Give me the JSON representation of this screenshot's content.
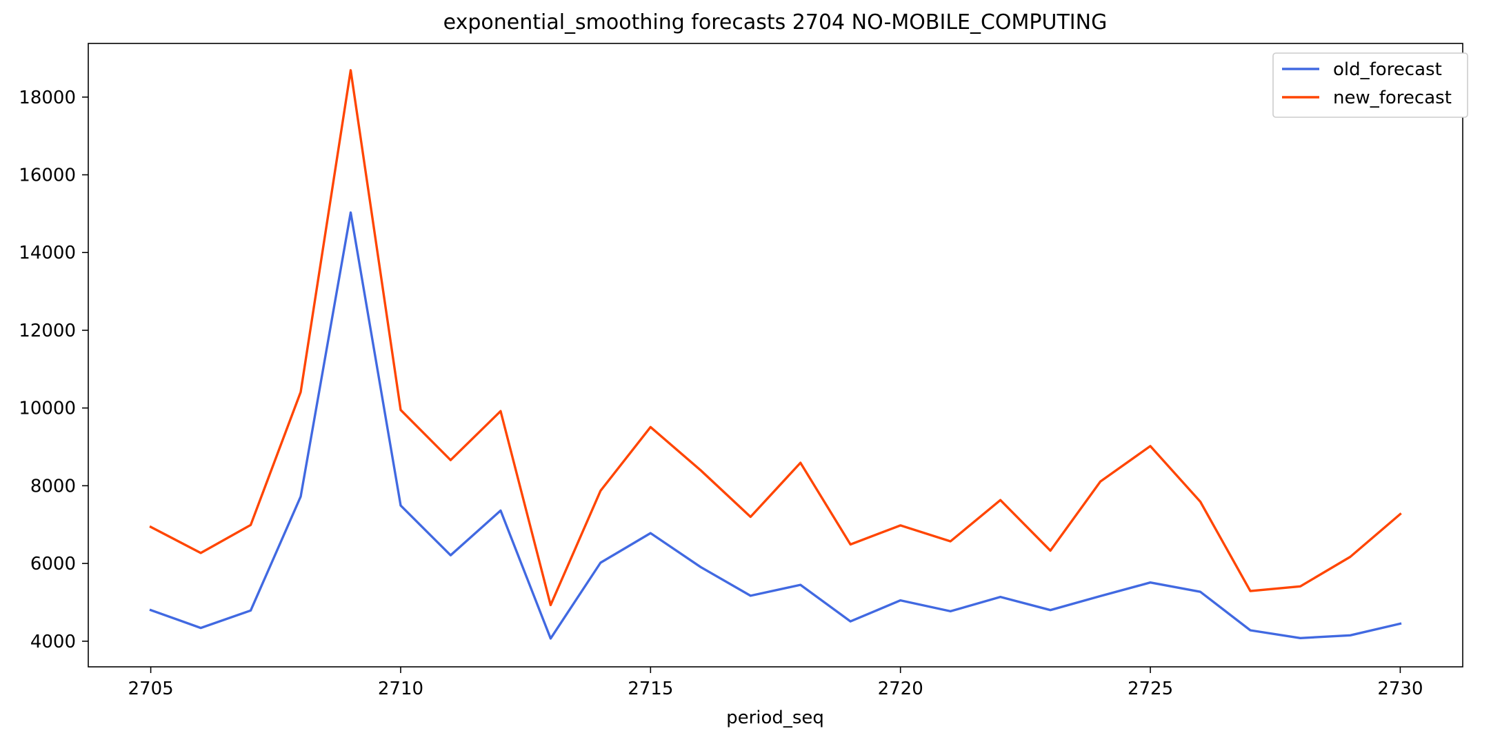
{
  "chart_data": {
    "type": "line",
    "title": "exponential_smoothing forecasts 2704 NO-MOBILE_COMPUTING",
    "xlabel": "period_seq",
    "ylabel": "",
    "x": [
      2705,
      2706,
      2707,
      2708,
      2709,
      2710,
      2711,
      2712,
      2713,
      2714,
      2715,
      2716,
      2717,
      2718,
      2719,
      2720,
      2721,
      2722,
      2723,
      2724,
      2725,
      2726,
      2727,
      2728,
      2729,
      2730
    ],
    "series": [
      {
        "name": "old_forecast",
        "color": "#4169e1",
        "values": [
          4800,
          4340,
          4790,
          7720,
          15030,
          7490,
          6210,
          7360,
          4070,
          6020,
          6780,
          5910,
          5170,
          5450,
          4510,
          5050,
          4770,
          5140,
          4800,
          5160,
          5510,
          5270,
          4280,
          4080,
          4150,
          4450
        ]
      },
      {
        "name": "new_forecast",
        "color": "#ff4500",
        "values": [
          6940,
          6270,
          6990,
          10410,
          18690,
          9950,
          8660,
          9920,
          4930,
          7870,
          9510,
          8400,
          7200,
          8590,
          6490,
          6980,
          6570,
          7630,
          6330,
          8110,
          9020,
          7590,
          5290,
          5410,
          6170,
          7270
        ]
      }
    ],
    "xticks": [
      "2705",
      "2710",
      "2715",
      "2720",
      "2725",
      "2730"
    ],
    "yticks": [
      "4000",
      "6000",
      "8000",
      "10000",
      "12000",
      "14000",
      "16000",
      "18000"
    ],
    "xlim": [
      2703.75,
      2731.25
    ],
    "ylim": [
      3340,
      19380
    ],
    "grid": false,
    "legend_position": "top-right"
  }
}
